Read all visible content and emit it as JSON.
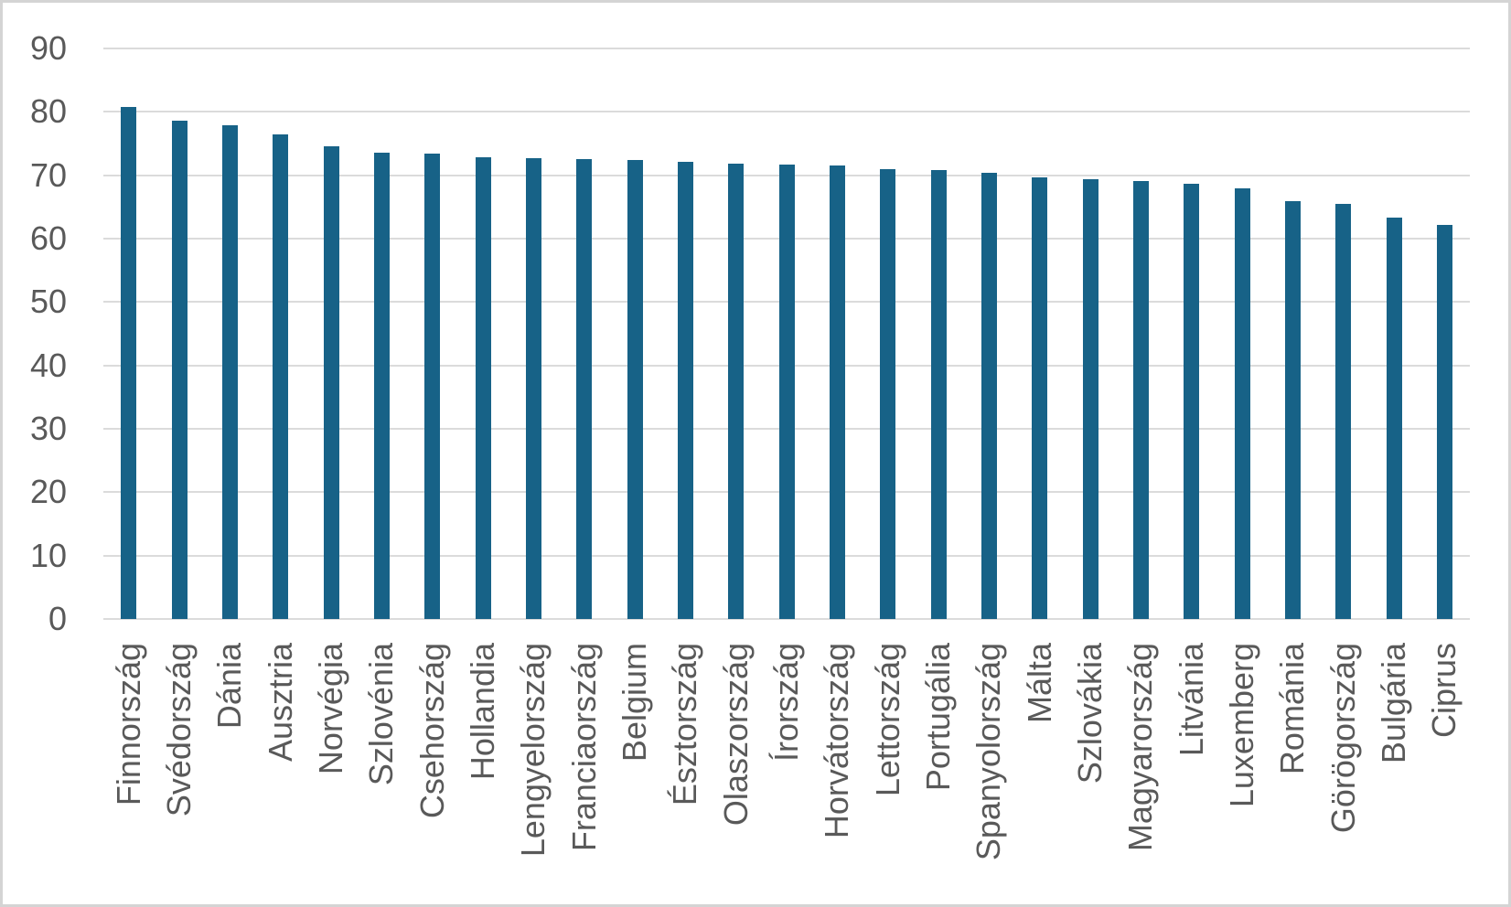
{
  "chart_data": {
    "type": "bar",
    "title": "",
    "xlabel": "",
    "ylabel": "",
    "categories": [
      "Finnország",
      "Svédország",
      "Dánia",
      "Ausztria",
      "Norvégia",
      "Szlovénia",
      "Csehország",
      "Hollandia",
      "Lengyelország",
      "Franciaország",
      "Belgium",
      "Észtország",
      "Olaszország",
      "Írország",
      "Horvátország",
      "Lettország",
      "Portugália",
      "Spanyolország",
      "Málta",
      "Szlovákia",
      "Magyarország",
      "Litvánia",
      "Luxemberg",
      "Románia",
      "Görögország",
      "Bulgária",
      "Ciprus"
    ],
    "values": [
      80.7,
      78.6,
      77.9,
      76.5,
      74.6,
      73.6,
      73.4,
      72.8,
      72.7,
      72.5,
      72.4,
      72.1,
      71.8,
      71.7,
      71.6,
      70.9,
      70.8,
      70.4,
      69.6,
      69.4,
      69.1,
      68.6,
      67.9,
      65.9,
      65.5,
      63.3,
      62.2
    ],
    "ylim": [
      0,
      90
    ],
    "yticks": [
      0,
      10,
      20,
      30,
      40,
      50,
      60,
      70,
      80,
      90
    ],
    "grid": true,
    "legend": false,
    "bar_color": "#176287",
    "gridline_color": "#dbdbdb",
    "axis_text_color": "#595959",
    "frame_border_color": "#d4d4d4",
    "background_color": "#ffffff"
  }
}
